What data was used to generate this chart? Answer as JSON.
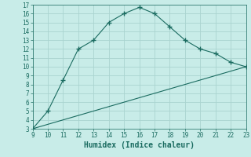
{
  "xlabel": "Humidex (Indice chaleur)",
  "bg_color": "#c8ece8",
  "grid_color": "#aad4d0",
  "line_color": "#1a6b60",
  "curve_x": [
    9,
    10,
    11,
    12,
    13,
    14,
    15,
    16,
    17,
    18,
    19,
    20,
    21,
    22,
    23
  ],
  "curve_y": [
    3.0,
    5.0,
    8.5,
    12.0,
    13.0,
    15.0,
    16.0,
    16.7,
    16.0,
    14.5,
    13.0,
    12.0,
    11.5,
    10.5,
    10.0
  ],
  "line_x": [
    9,
    23
  ],
  "line_y": [
    3.0,
    10.0
  ],
  "xlim": [
    9,
    23
  ],
  "ylim": [
    3,
    17
  ],
  "xticks": [
    9,
    10,
    11,
    12,
    13,
    14,
    15,
    16,
    17,
    18,
    19,
    20,
    21,
    22,
    23
  ],
  "yticks": [
    3,
    4,
    5,
    6,
    7,
    8,
    9,
    10,
    11,
    12,
    13,
    14,
    15,
    16,
    17
  ],
  "tick_fontsize": 5.5,
  "xlabel_fontsize": 7
}
